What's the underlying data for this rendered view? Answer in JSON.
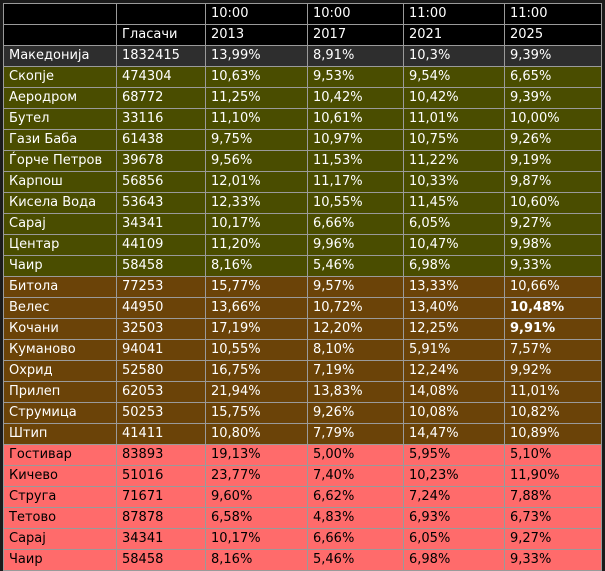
{
  "table": {
    "header_times": [
      "10:00",
      "10:00",
      "11:00",
      "11:00"
    ],
    "header_years": [
      "2013",
      "2017",
      "2021",
      "2025"
    ],
    "voters_label": "Гласачи",
    "rows": [
      {
        "name": "Македонија",
        "voters": "1832415",
        "v": [
          "13,99%",
          "8,91%",
          "10,3%",
          "9,39%"
        ],
        "group": "total"
      },
      {
        "name": "Скопје",
        "voters": "474304",
        "v": [
          "10,63%",
          "9,53%",
          "9,54%",
          "6,65%"
        ],
        "group": "olive"
      },
      {
        "name": "Аеродром",
        "voters": "68772",
        "v": [
          "11,25%",
          "10,42%",
          "10,42%",
          "9,39%"
        ],
        "group": "olive"
      },
      {
        "name": "Бутел",
        "voters": "33116",
        "v": [
          "11,10%",
          "10,61%",
          "11,01%",
          "10,00%"
        ],
        "group": "olive"
      },
      {
        "name": "Гази Баба",
        "voters": "61438",
        "v": [
          "9,75%",
          "10,97%",
          "10,75%",
          "9,26%"
        ],
        "group": "olive"
      },
      {
        "name": "Ѓорче Петров",
        "voters": "39678",
        "v": [
          "9,56%",
          "11,53%",
          "11,22%",
          "9,19%"
        ],
        "group": "olive"
      },
      {
        "name": "Карпош",
        "voters": "56856",
        "v": [
          "12,01%",
          "11,17%",
          "10,33%",
          "9,87%"
        ],
        "group": "olive"
      },
      {
        "name": "Кисела Вода",
        "voters": "53643",
        "v": [
          "12,33%",
          "10,55%",
          "11,45%",
          "10,60%"
        ],
        "group": "olive"
      },
      {
        "name": "Сарај",
        "voters": "34341",
        "v": [
          "10,17%",
          "6,66%",
          "6,05%",
          "9,27%"
        ],
        "group": "olive"
      },
      {
        "name": "Центар",
        "voters": "44109",
        "v": [
          "11,20%",
          "9,96%",
          "10,47%",
          "9,98%"
        ],
        "group": "olive"
      },
      {
        "name": "Чаир",
        "voters": "58458",
        "v": [
          "8,16%",
          "5,46%",
          "6,98%",
          "9,33%"
        ],
        "group": "olive"
      },
      {
        "name": "Битола",
        "voters": "77253",
        "v": [
          "15,77%",
          "9,57%",
          "13,33%",
          "10,66%"
        ],
        "group": "brown"
      },
      {
        "name": "Велес",
        "voters": "44950",
        "v": [
          "13,66%",
          "10,72%",
          "13,40%",
          "10,48%"
        ],
        "group": "brown",
        "bold_last": true
      },
      {
        "name": "Кочани",
        "voters": "32503",
        "v": [
          "17,19%",
          "12,20%",
          "12,25%",
          "9,91%"
        ],
        "group": "brown",
        "bold_last": true
      },
      {
        "name": "Куманово",
        "voters": "94041",
        "v": [
          "10,55%",
          "8,10%",
          "5,91%",
          "7,57%"
        ],
        "group": "brown"
      },
      {
        "name": "Охрид",
        "voters": "52580",
        "v": [
          "16,75%",
          "7,19%",
          "12,24%",
          "9,92%"
        ],
        "group": "brown"
      },
      {
        "name": "Прилеп",
        "voters": "62053",
        "v": [
          "21,94%",
          "13,83%",
          "14,08%",
          "11,01%"
        ],
        "group": "brown"
      },
      {
        "name": "Струмица",
        "voters": "50253",
        "v": [
          "15,75%",
          "9,26%",
          "10,08%",
          "10,82%"
        ],
        "group": "brown"
      },
      {
        "name": "Штип",
        "voters": "41411",
        "v": [
          "10,80%",
          "7,79%",
          "14,47%",
          "10,89%"
        ],
        "group": "brown"
      },
      {
        "name": "Гостивар",
        "voters": "83893",
        "v": [
          "19,13%",
          "5,00%",
          "5,95%",
          "5,10%"
        ],
        "group": "red"
      },
      {
        "name": "Кичево",
        "voters": "51016",
        "v": [
          "23,77%",
          "7,40%",
          "10,23%",
          "11,90%"
        ],
        "group": "red"
      },
      {
        "name": "Струга",
        "voters": "71671",
        "v": [
          "9,60%",
          "6,62%",
          "7,24%",
          "7,88%"
        ],
        "group": "red"
      },
      {
        "name": "Тетово",
        "voters": "87878",
        "v": [
          "6,58%",
          "4,83%",
          "6,93%",
          "6,73%"
        ],
        "group": "red"
      },
      {
        "name": "Сарај",
        "voters": "34341",
        "v": [
          "10,17%",
          "6,66%",
          "6,05%",
          "9,27%"
        ],
        "group": "red"
      },
      {
        "name": "Чаир",
        "voters": "58458",
        "v": [
          "8,16%",
          "5,46%",
          "6,98%",
          "9,33%"
        ],
        "group": "red"
      }
    ]
  }
}
